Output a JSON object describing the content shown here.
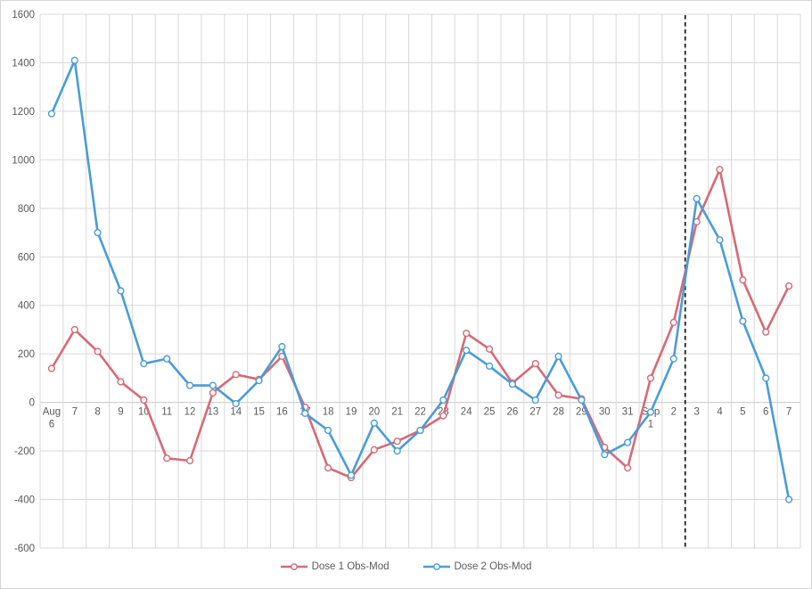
{
  "chart_data": {
    "type": "line",
    "title": "",
    "xlabel": "",
    "ylabel": "",
    "categories": [
      "Aug 6",
      "7",
      "8",
      "9",
      "10",
      "11",
      "12",
      "13",
      "14",
      "15",
      "16",
      "17",
      "18",
      "19",
      "20",
      "21",
      "22",
      "23",
      "24",
      "25",
      "26",
      "27",
      "28",
      "29",
      "30",
      "31",
      "Sep 1",
      "2",
      "3",
      "4",
      "5",
      "6",
      "7"
    ],
    "series": [
      {
        "name": "Dose 1 Obs-Mod",
        "color": "#D66A76",
        "values": [
          140,
          300,
          210,
          85,
          10,
          -230,
          -240,
          40,
          115,
          95,
          190,
          -20,
          -270,
          -310,
          -195,
          -160,
          -115,
          -55,
          285,
          220,
          80,
          160,
          30,
          15,
          -185,
          -270,
          100,
          330,
          745,
          960,
          505,
          290,
          480
        ]
      },
      {
        "name": "Dose 2 Obs-Mod",
        "color": "#4A9CD6",
        "values": [
          1190,
          1410,
          700,
          460,
          160,
          180,
          70,
          70,
          -5,
          90,
          230,
          -45,
          -115,
          -300,
          -85,
          -200,
          -115,
          10,
          215,
          150,
          75,
          10,
          190,
          10,
          -215,
          -165,
          -40,
          180,
          840,
          670,
          335,
          100,
          -400
        ]
      }
    ],
    "ylim": [
      -600,
      1600
    ],
    "ytick_step": 200,
    "grid": true,
    "gridline_color": "#D9D9D9",
    "axis_text_color": "#595959",
    "legend_position": "bottom",
    "annotations": [
      {
        "type": "vline-dashed",
        "x_index": 27.5,
        "color": "#1F1F1F"
      }
    ],
    "marker": "circle-open"
  }
}
